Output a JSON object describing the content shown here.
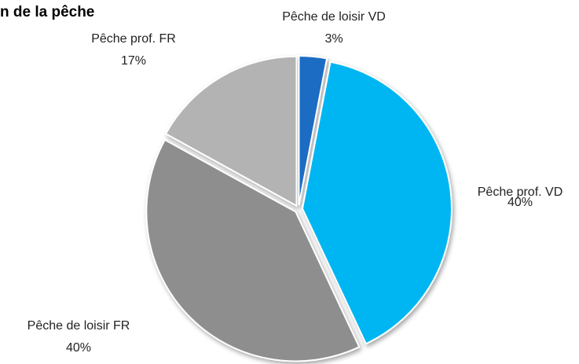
{
  "chart_data": {
    "type": "pie",
    "title": "n de la pêche",
    "categories": [
      "Pêche de loisir VD",
      "Pêche prof. VD",
      "Pêche de loisir FR",
      "Pêche prof. FR"
    ],
    "values": [
      3,
      40,
      40,
      17
    ],
    "value_labels": [
      "3%",
      "40%",
      "40%",
      "17%"
    ],
    "colors": [
      "#1c6cc4",
      "#00b6f2",
      "#8e8e8e",
      "#b3b3b3"
    ]
  }
}
